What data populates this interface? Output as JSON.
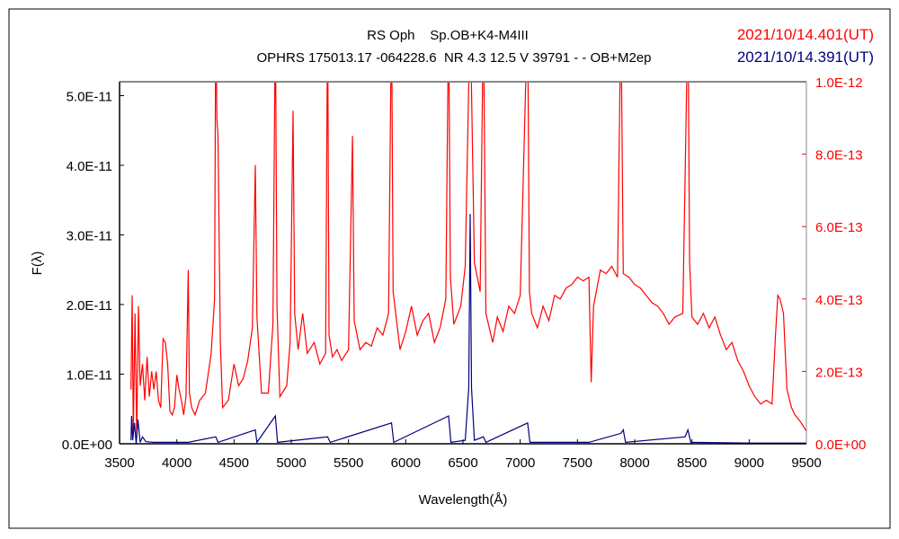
{
  "chart_data": {
    "type": "line",
    "title": "RS Oph    Sp.OB+K4-M4III",
    "subtitle": "OPHRS 175013.17 -064228.6  NR 4.3 12.5 V 39791 - - OB+M2ep",
    "xlabel": "Wavelength(Å)",
    "ylabel": "F(λ)",
    "xlim": [
      3500,
      9500
    ],
    "xticks": [
      "3500",
      "4000",
      "4500",
      "5000",
      "5500",
      "6000",
      "6500",
      "7000",
      "7500",
      "8000",
      "8500",
      "9000",
      "9500"
    ],
    "ylim_left": [
      0,
      5.2e-11
    ],
    "yticks_left": [
      "0.0E+00",
      "1.0E-11",
      "2.0E-11",
      "3.0E-11",
      "4.0E-11",
      "5.0E-11"
    ],
    "ylim_right": [
      0,
      1e-12
    ],
    "yticks_right": [
      "0.0E+00",
      "2.0E-13",
      "4.0E-13",
      "6.0E-13",
      "8.0E-13",
      "1.0E-12"
    ],
    "grid": false,
    "legend": [
      {
        "label": "2021/10/14.401(UT)",
        "color": "#ff0000",
        "axis": "right"
      },
      {
        "label": "2021/10/14.391(UT)",
        "color": "#000080",
        "axis": "left"
      }
    ],
    "series": [
      {
        "name": "2021/10/14.401(UT)",
        "color": "#ff0000",
        "axis": "right",
        "unit": 1e-13,
        "points": [
          [
            3600,
            1.5
          ],
          [
            3610,
            4.1
          ],
          [
            3620,
            0.3
          ],
          [
            3635,
            3.6
          ],
          [
            3650,
            0.2
          ],
          [
            3665,
            3.8
          ],
          [
            3680,
            1.6
          ],
          [
            3700,
            2.2
          ],
          [
            3720,
            1.2
          ],
          [
            3740,
            2.4
          ],
          [
            3760,
            1.3
          ],
          [
            3780,
            2.0
          ],
          [
            3800,
            1.5
          ],
          [
            3820,
            2.0
          ],
          [
            3840,
            1.2
          ],
          [
            3860,
            1.0
          ],
          [
            3880,
            2.9
          ],
          [
            3900,
            2.8
          ],
          [
            3920,
            2.2
          ],
          [
            3940,
            0.9
          ],
          [
            3960,
            0.8
          ],
          [
            3980,
            1.0
          ],
          [
            4000,
            1.9
          ],
          [
            4020,
            1.5
          ],
          [
            4040,
            1.2
          ],
          [
            4060,
            0.8
          ],
          [
            4080,
            1.3
          ],
          [
            4100,
            4.8
          ],
          [
            4110,
            1.4
          ],
          [
            4130,
            1.0
          ],
          [
            4160,
            0.8
          ],
          [
            4200,
            1.2
          ],
          [
            4250,
            1.4
          ],
          [
            4300,
            2.5
          ],
          [
            4330,
            4.0
          ],
          [
            4340,
            12
          ],
          [
            4350,
            9.0
          ],
          [
            4360,
            8.5
          ],
          [
            4380,
            2.8
          ],
          [
            4400,
            1.0
          ],
          [
            4450,
            1.2
          ],
          [
            4500,
            2.2
          ],
          [
            4540,
            1.6
          ],
          [
            4580,
            1.8
          ],
          [
            4620,
            2.3
          ],
          [
            4660,
            3.2
          ],
          [
            4686,
            7.7
          ],
          [
            4700,
            3.5
          ],
          [
            4740,
            1.4
          ],
          [
            4800,
            1.4
          ],
          [
            4840,
            3.3
          ],
          [
            4861,
            12
          ],
          [
            4875,
            3.8
          ],
          [
            4900,
            1.3
          ],
          [
            4960,
            1.6
          ],
          [
            4990,
            2.8
          ],
          [
            5016,
            9.2
          ],
          [
            5030,
            3.6
          ],
          [
            5060,
            2.6
          ],
          [
            5100,
            3.6
          ],
          [
            5140,
            2.5
          ],
          [
            5200,
            2.8
          ],
          [
            5250,
            2.2
          ],
          [
            5300,
            2.5
          ],
          [
            5317,
            12
          ],
          [
            5330,
            3.0
          ],
          [
            5360,
            2.4
          ],
          [
            5400,
            2.6
          ],
          [
            5440,
            2.3
          ],
          [
            5500,
            2.6
          ],
          [
            5535,
            8.5
          ],
          [
            5550,
            3.4
          ],
          [
            5600,
            2.6
          ],
          [
            5650,
            2.8
          ],
          [
            5700,
            2.7
          ],
          [
            5750,
            3.2
          ],
          [
            5800,
            3.0
          ],
          [
            5850,
            3.6
          ],
          [
            5876,
            12
          ],
          [
            5890,
            4.2
          ],
          [
            5950,
            2.6
          ],
          [
            6000,
            3.1
          ],
          [
            6050,
            3.8
          ],
          [
            6100,
            3.0
          ],
          [
            6150,
            3.4
          ],
          [
            6200,
            3.6
          ],
          [
            6250,
            2.8
          ],
          [
            6300,
            3.2
          ],
          [
            6350,
            4.0
          ],
          [
            6374,
            12
          ],
          [
            6390,
            4.6
          ],
          [
            6420,
            3.3
          ],
          [
            6480,
            3.8
          ],
          [
            6520,
            4.9
          ],
          [
            6563,
            12
          ],
          [
            6600,
            5.0
          ],
          [
            6650,
            4.2
          ],
          [
            6678,
            12
          ],
          [
            6700,
            3.6
          ],
          [
            6760,
            2.8
          ],
          [
            6800,
            3.5
          ],
          [
            6850,
            3.1
          ],
          [
            6900,
            3.8
          ],
          [
            6950,
            3.6
          ],
          [
            7000,
            4.1
          ],
          [
            7065,
            12
          ],
          [
            7080,
            4.2
          ],
          [
            7100,
            3.6
          ],
          [
            7150,
            3.2
          ],
          [
            7200,
            3.8
          ],
          [
            7250,
            3.4
          ],
          [
            7300,
            4.1
          ],
          [
            7350,
            4.0
          ],
          [
            7400,
            4.3
          ],
          [
            7450,
            4.4
          ],
          [
            7500,
            4.6
          ],
          [
            7550,
            4.5
          ],
          [
            7600,
            4.6
          ],
          [
            7620,
            1.7
          ],
          [
            7640,
            3.8
          ],
          [
            7700,
            4.8
          ],
          [
            7750,
            4.7
          ],
          [
            7800,
            4.9
          ],
          [
            7850,
            4.6
          ],
          [
            7880,
            12
          ],
          [
            7900,
            4.7
          ],
          [
            7950,
            4.6
          ],
          [
            8000,
            4.4
          ],
          [
            8050,
            4.3
          ],
          [
            8100,
            4.1
          ],
          [
            8150,
            3.9
          ],
          [
            8200,
            3.8
          ],
          [
            8250,
            3.6
          ],
          [
            8300,
            3.3
          ],
          [
            8350,
            3.5
          ],
          [
            8420,
            3.6
          ],
          [
            8465,
            12
          ],
          [
            8480,
            5.0
          ],
          [
            8500,
            3.5
          ],
          [
            8550,
            3.3
          ],
          [
            8600,
            3.6
          ],
          [
            8650,
            3.2
          ],
          [
            8700,
            3.5
          ],
          [
            8750,
            3.0
          ],
          [
            8800,
            2.6
          ],
          [
            8850,
            2.8
          ],
          [
            8900,
            2.3
          ],
          [
            8950,
            2.0
          ],
          [
            9000,
            1.6
          ],
          [
            9050,
            1.3
          ],
          [
            9100,
            1.1
          ],
          [
            9150,
            1.2
          ],
          [
            9200,
            1.1
          ],
          [
            9230,
            3.0
          ],
          [
            9250,
            4.1
          ],
          [
            9270,
            4.0
          ],
          [
            9300,
            3.6
          ],
          [
            9330,
            1.5
          ],
          [
            9370,
            1.0
          ],
          [
            9400,
            0.8
          ],
          [
            9450,
            0.6
          ],
          [
            9500,
            0.35
          ]
        ]
      },
      {
        "name": "2021/10/14.391(UT)",
        "color": "#000080",
        "axis": "left",
        "unit": 1e-11,
        "points": [
          [
            3600,
            0.05
          ],
          [
            3605,
            0.4
          ],
          [
            3615,
            0.05
          ],
          [
            3630,
            0.3
          ],
          [
            3645,
            0.0
          ],
          [
            3660,
            0.35
          ],
          [
            3680,
            0.02
          ],
          [
            3700,
            0.1
          ],
          [
            3730,
            0.03
          ],
          [
            3800,
            0.02
          ],
          [
            4100,
            0.02
          ],
          [
            4340,
            0.1
          ],
          [
            4360,
            0.02
          ],
          [
            4686,
            0.2
          ],
          [
            4700,
            0.02
          ],
          [
            4861,
            0.4
          ],
          [
            4880,
            0.02
          ],
          [
            5317,
            0.1
          ],
          [
            5340,
            0.02
          ],
          [
            5876,
            0.3
          ],
          [
            5895,
            0.02
          ],
          [
            6374,
            0.4
          ],
          [
            6395,
            0.02
          ],
          [
            6520,
            0.05
          ],
          [
            6550,
            0.8
          ],
          [
            6563,
            3.3
          ],
          [
            6575,
            0.8
          ],
          [
            6600,
            0.05
          ],
          [
            6678,
            0.1
          ],
          [
            6700,
            0.02
          ],
          [
            7065,
            0.3
          ],
          [
            7085,
            0.02
          ],
          [
            7600,
            0.02
          ],
          [
            7880,
            0.15
          ],
          [
            7900,
            0.2
          ],
          [
            7920,
            0.02
          ],
          [
            8440,
            0.1
          ],
          [
            8465,
            0.2
          ],
          [
            8490,
            0.02
          ],
          [
            9000,
            0.01
          ],
          [
            9500,
            0.01
          ]
        ]
      }
    ]
  }
}
